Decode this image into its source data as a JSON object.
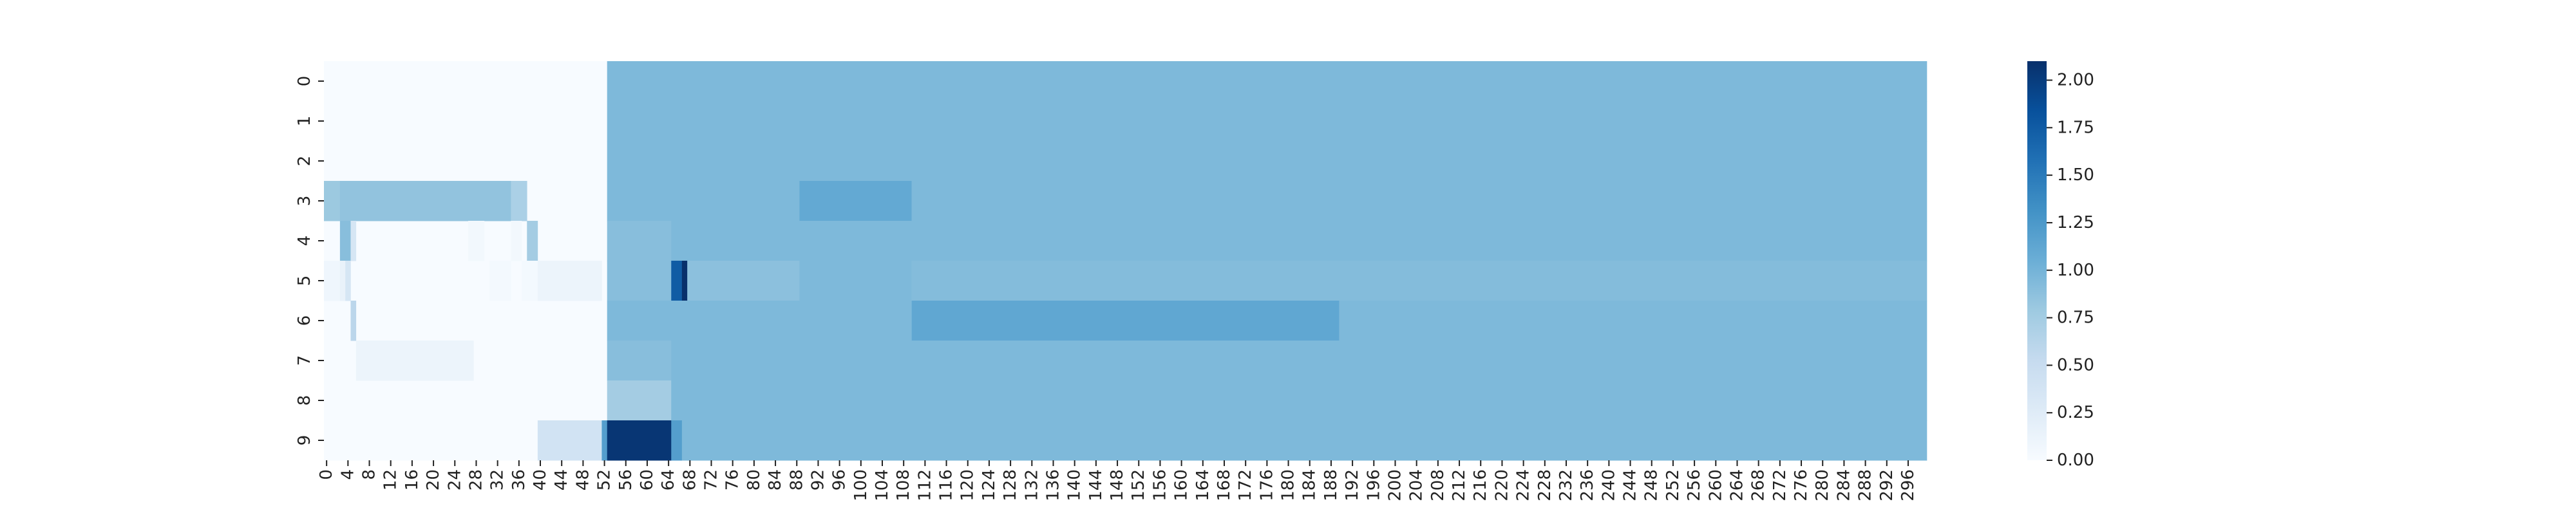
{
  "chart_data": {
    "type": "heatmap",
    "title": "",
    "xlabel": "",
    "ylabel": "",
    "n_cols": 300,
    "row_labels": [
      "0",
      "1",
      "2",
      "3",
      "4",
      "5",
      "6",
      "7",
      "8",
      "9"
    ],
    "x_tick_step": 4,
    "x_tick_labels": [
      "0",
      "4",
      "8",
      "12",
      "16",
      "20",
      "24",
      "28",
      "32",
      "36",
      "40",
      "44",
      "48",
      "52",
      "56",
      "60",
      "64",
      "68",
      "72",
      "76",
      "80",
      "84",
      "88",
      "92",
      "96",
      "100",
      "104",
      "108",
      "112",
      "116",
      "120",
      "124",
      "128",
      "132",
      "136",
      "140",
      "144",
      "148",
      "152",
      "156",
      "160",
      "164",
      "168",
      "172",
      "176",
      "180",
      "184",
      "188",
      "192",
      "196",
      "200",
      "204",
      "208",
      "212",
      "216",
      "220",
      "224",
      "228",
      "232",
      "236",
      "240",
      "244",
      "248",
      "252",
      "256",
      "260",
      "264",
      "268",
      "272",
      "276",
      "280",
      "284",
      "288",
      "292",
      "296"
    ],
    "colorbar": {
      "min": 0,
      "max": 2.1,
      "ticks": [
        0,
        0.25,
        0.5,
        0.75,
        1.0,
        1.25,
        1.5,
        1.75,
        2.0
      ],
      "tick_labels": [
        "0.00",
        "0.25",
        "0.50",
        "0.75",
        "1.00",
        "1.25",
        "1.50",
        "1.75",
        "2.00"
      ]
    },
    "colormap": "Blues",
    "grid": false,
    "baseline": [
      0,
      0,
      0,
      0,
      0,
      0,
      0,
      0,
      0,
      0
    ],
    "segments": [
      {
        "row": 0,
        "from": 53,
        "to": 299,
        "value": 0.95
      },
      {
        "row": 1,
        "from": 53,
        "to": 299,
        "value": 0.95
      },
      {
        "row": 2,
        "from": 53,
        "to": 299,
        "value": 0.95
      },
      {
        "row": 3,
        "from": 0,
        "to": 2,
        "value": 0.8
      },
      {
        "row": 3,
        "from": 3,
        "to": 34,
        "value": 0.85
      },
      {
        "row": 3,
        "from": 35,
        "to": 37,
        "value": 0.7
      },
      {
        "row": 3,
        "from": 53,
        "to": 88,
        "value": 0.95
      },
      {
        "row": 3,
        "from": 89,
        "to": 109,
        "value": 1.1
      },
      {
        "row": 3,
        "from": 110,
        "to": 299,
        "value": 0.95
      },
      {
        "row": 4,
        "from": 3,
        "to": 4,
        "value": 0.9
      },
      {
        "row": 4,
        "from": 5,
        "to": 5,
        "value": 0.35
      },
      {
        "row": 4,
        "from": 27,
        "to": 29,
        "value": 0.05
      },
      {
        "row": 4,
        "from": 35,
        "to": 36,
        "value": 0.05
      },
      {
        "row": 4,
        "from": 38,
        "to": 39,
        "value": 0.75
      },
      {
        "row": 4,
        "from": 53,
        "to": 64,
        "value": 0.9
      },
      {
        "row": 4,
        "from": 65,
        "to": 299,
        "value": 0.95
      },
      {
        "row": 5,
        "from": 0,
        "to": 2,
        "value": 0.08
      },
      {
        "row": 5,
        "from": 3,
        "to": 3,
        "value": 0.15
      },
      {
        "row": 5,
        "from": 4,
        "to": 4,
        "value": 0.35
      },
      {
        "row": 5,
        "from": 31,
        "to": 34,
        "value": 0.04
      },
      {
        "row": 5,
        "from": 37,
        "to": 39,
        "value": 0.04
      },
      {
        "row": 5,
        "from": 40,
        "to": 51,
        "value": 0.12
      },
      {
        "row": 5,
        "from": 53,
        "to": 64,
        "value": 0.9
      },
      {
        "row": 5,
        "from": 65,
        "to": 66,
        "value": 1.75
      },
      {
        "row": 5,
        "from": 67,
        "to": 67,
        "value": 2.1
      },
      {
        "row": 5,
        "from": 68,
        "to": 88,
        "value": 0.88
      },
      {
        "row": 5,
        "from": 89,
        "to": 109,
        "value": 0.95
      },
      {
        "row": 5,
        "from": 110,
        "to": 299,
        "value": 0.92
      },
      {
        "row": 6,
        "from": 5,
        "to": 5,
        "value": 0.6
      },
      {
        "row": 6,
        "from": 53,
        "to": 109,
        "value": 0.95
      },
      {
        "row": 6,
        "from": 110,
        "to": 189,
        "value": 1.12
      },
      {
        "row": 6,
        "from": 190,
        "to": 299,
        "value": 0.95
      },
      {
        "row": 7,
        "from": 6,
        "to": 27,
        "value": 0.12
      },
      {
        "row": 7,
        "from": 53,
        "to": 64,
        "value": 0.9
      },
      {
        "row": 7,
        "from": 65,
        "to": 299,
        "value": 0.95
      },
      {
        "row": 8,
        "from": 53,
        "to": 64,
        "value": 0.75
      },
      {
        "row": 8,
        "from": 65,
        "to": 299,
        "value": 0.95
      },
      {
        "row": 9,
        "from": 40,
        "to": 51,
        "value": 0.4
      },
      {
        "row": 9,
        "from": 52,
        "to": 52,
        "value": 1.2
      },
      {
        "row": 9,
        "from": 53,
        "to": 64,
        "value": 2.05
      },
      {
        "row": 9,
        "from": 65,
        "to": 66,
        "value": 1.2
      },
      {
        "row": 9,
        "from": 67,
        "to": 299,
        "value": 0.95
      }
    ]
  }
}
